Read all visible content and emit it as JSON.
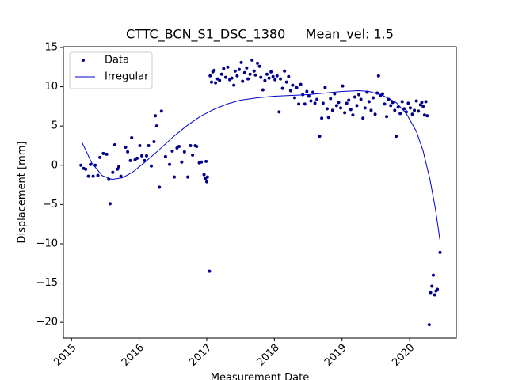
{
  "chart_data": {
    "type": "line",
    "title": "CTTC_BCN_S1_DSC_1380     Mean_vel: 1.5",
    "x_label": "Measurement Date",
    "y_label": "Displacement [mm]",
    "xlim": [
      2014.88,
      2020.69
    ],
    "ylim": [
      -22.0,
      15.1
    ],
    "xticks": [
      2015,
      2016,
      2017,
      2018,
      2019,
      2020
    ],
    "yticks": [
      {
        "value": -20,
        "label": "−20"
      },
      {
        "value": -15,
        "label": "−15"
      },
      {
        "value": -10,
        "label": "−10"
      },
      {
        "value": -5,
        "label": "−5"
      },
      0,
      5,
      10,
      15
    ],
    "legend": "upper left",
    "series": [
      {
        "name": "Data",
        "style": "markers",
        "color": "#00008b",
        "x": [
          2015.14,
          2015.18,
          2015.21,
          2015.25,
          2015.28,
          2015.32,
          2015.35,
          2015.39,
          2015.42,
          2015.47,
          2015.52,
          2015.55,
          2015.57,
          2015.61,
          2015.64,
          2015.68,
          2015.7,
          2015.73,
          2015.8,
          2015.83,
          2015.87,
          2015.89,
          2015.94,
          2015.97,
          2016.01,
          2016.04,
          2016.08,
          2016.11,
          2016.14,
          2016.18,
          2016.22,
          2016.24,
          2016.26,
          2016.3,
          2016.33,
          2016.39,
          2016.45,
          2016.49,
          2016.52,
          2016.56,
          2016.59,
          2016.63,
          2016.67,
          2016.72,
          2016.76,
          2016.79,
          2016.83,
          2016.85,
          2016.89,
          2016.92,
          2016.96,
          2016.98,
          2016.99,
          2017.0,
          2017.01,
          2017.04,
          2017.05,
          2017.07,
          2017.09,
          2017.11,
          2017.13,
          2017.16,
          2017.19,
          2017.22,
          2017.25,
          2017.28,
          2017.31,
          2017.34,
          2017.37,
          2017.4,
          2017.42,
          2017.45,
          2017.48,
          2017.51,
          2017.53,
          2017.56,
          2017.59,
          2017.61,
          2017.64,
          2017.67,
          2017.7,
          2017.72,
          2017.75,
          2017.78,
          2017.8,
          2017.83,
          2017.86,
          2017.89,
          2017.92,
          2017.95,
          2017.98,
          2018.01,
          2018.04,
          2018.07,
          2018.09,
          2018.12,
          2018.15,
          2018.18,
          2018.21,
          2018.24,
          2018.27,
          2018.3,
          2018.33,
          2018.36,
          2018.39,
          2018.42,
          2018.45,
          2018.48,
          2018.51,
          2018.54,
          2018.57,
          2018.6,
          2018.63,
          2018.67,
          2018.7,
          2018.72,
          2018.75,
          2018.78,
          2018.8,
          2018.83,
          2018.86,
          2018.89,
          2018.92,
          2018.95,
          2018.98,
          2019.01,
          2019.04,
          2019.07,
          2019.1,
          2019.13,
          2019.16,
          2019.19,
          2019.22,
          2019.25,
          2019.28,
          2019.31,
          2019.34,
          2019.37,
          2019.4,
          2019.43,
          2019.46,
          2019.49,
          2019.52,
          2019.54,
          2019.57,
          2019.6,
          2019.63,
          2019.66,
          2019.69,
          2019.72,
          2019.75,
          2019.78,
          2019.8,
          2019.83,
          2019.86,
          2019.89,
          2019.92,
          2019.95,
          2019.98,
          2020.01,
          2020.04,
          2020.07,
          2020.1,
          2020.13,
          2020.16,
          2020.18,
          2020.2,
          2020.22,
          2020.24,
          2020.26,
          2020.29,
          2020.31,
          2020.33,
          2020.35,
          2020.37,
          2020.39,
          2020.41,
          2020.45
        ],
        "values": [
          0,
          -0.4,
          -0.5,
          -1.4,
          0.1,
          -1.4,
          0,
          -1.3,
          1,
          1.5,
          1.4,
          -1.8,
          -4.9,
          -0.9,
          2.6,
          -0.5,
          -0.2,
          -1.4,
          2.3,
          1.7,
          0.6,
          3.5,
          0.7,
          0.9,
          2.5,
          1.2,
          0.6,
          1.2,
          2.5,
          -0.1,
          3,
          6.3,
          5,
          -2.8,
          6.9,
          1.1,
          0.1,
          1.8,
          -1.5,
          2.2,
          2.4,
          0.4,
          1.7,
          -1.5,
          2.5,
          1.3,
          2.5,
          2.4,
          0.3,
          0.4,
          -1.2,
          -1.7,
          0.5,
          -2.1,
          -1.5,
          -13.5,
          11.4,
          10.6,
          11.9,
          12.1,
          10.5,
          11.0,
          10.8,
          11.6,
          12.3,
          11.2,
          12.5,
          10.9,
          11.1,
          10.2,
          12.0,
          11.4,
          12.2,
          13.1,
          10.7,
          11.8,
          12.4,
          11.0,
          11.6,
          13.4,
          12.0,
          11.5,
          13.0,
          12.6,
          11.2,
          9.6,
          10.8,
          11.6,
          11.1,
          11.9,
          11.3,
          10.9,
          11.4,
          6.8,
          11.0,
          9.8,
          12.0,
          10.6,
          11.3,
          9.5,
          10.2,
          8.6,
          9.9,
          7.8,
          10.3,
          9.0,
          7.8,
          9.4,
          8.8,
          8.2,
          9.3,
          7.9,
          8.4,
          3.7,
          6.0,
          7.9,
          9.9,
          7.2,
          6.1,
          8.5,
          7.0,
          9.1,
          7.6,
          8.0,
          7.3,
          10.1,
          6.7,
          7.9,
          8.3,
          7.1,
          6.4,
          8.7,
          7.6,
          9.0,
          8.4,
          6.0,
          7.3,
          9.3,
          8.1,
          7.0,
          8.6,
          6.5,
          9.2,
          11.4,
          8.9,
          9.1,
          7.8,
          6.2,
          8.4,
          7.6,
          8.0,
          7.0,
          3.7,
          7.4,
          6.6,
          8.1,
          7.2,
          6.8,
          7.9,
          7.3,
          6.5,
          7.0,
          8.2,
          6.9,
          7.7,
          8.0,
          7.5,
          6.4,
          8.1,
          6.3,
          -20.3,
          -16.2,
          -15.4,
          -14.0,
          -16.5,
          -16.0,
          -15.8,
          -11.1
        ]
      },
      {
        "name": "Irregular",
        "style": "line",
        "color": "#0000cd",
        "x": [
          2015.15,
          2015.3,
          2015.45,
          2015.6,
          2015.75,
          2015.9,
          2016.1,
          2016.3,
          2016.5,
          2016.7,
          2016.9,
          2017.1,
          2017.3,
          2017.5,
          2017.75,
          2018.0,
          2018.25,
          2018.5,
          2018.75,
          2019.0,
          2019.25,
          2019.4,
          2019.6,
          2019.8,
          2019.95,
          2020.1,
          2020.2,
          2020.3,
          2020.38,
          2020.45
        ],
        "values": [
          3.0,
          0.3,
          -1.3,
          -1.8,
          -1.6,
          -0.9,
          0.5,
          2.0,
          3.6,
          5.0,
          6.2,
          7.1,
          7.8,
          8.3,
          8.6,
          8.8,
          8.9,
          9.0,
          9.2,
          9.4,
          9.5,
          9.4,
          8.9,
          8.0,
          6.6,
          4.3,
          1.8,
          -1.8,
          -5.5,
          -9.6
        ]
      }
    ]
  }
}
